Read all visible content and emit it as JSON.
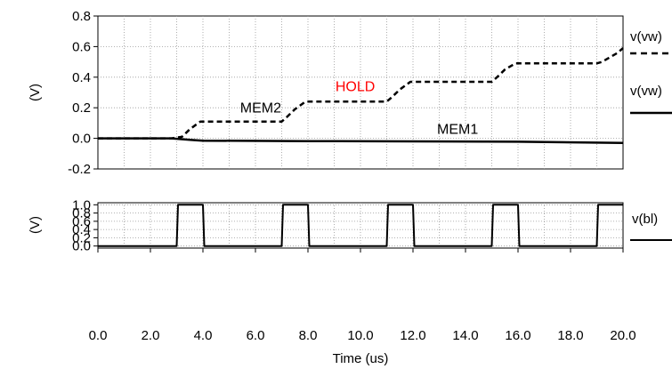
{
  "chart_data": [
    {
      "type": "line",
      "ylabel": "(V)",
      "ylim": [
        -0.2,
        0.8
      ],
      "yticks": [
        -0.2,
        0.0,
        0.2,
        0.4,
        0.6,
        0.8
      ],
      "ytick_labels": [
        "-0.2",
        "0.0",
        "0.2",
        "0.4",
        "0.6",
        "0.8"
      ],
      "xlim": [
        0,
        20
      ],
      "grid": true,
      "series": [
        {
          "name": "v(vw)",
          "style": "dashed",
          "color": "#000000",
          "x": [
            0,
            2.8,
            3.2,
            3.5,
            3.9,
            7.0,
            7.2,
            7.5,
            7.9,
            11.0,
            11.2,
            11.5,
            11.9,
            15.0,
            15.2,
            15.5,
            15.9,
            19.0,
            19.2,
            19.5,
            19.8,
            20.0
          ],
          "y": [
            0.0,
            0.0,
            0.01,
            0.06,
            0.11,
            0.11,
            0.14,
            0.19,
            0.24,
            0.24,
            0.27,
            0.32,
            0.37,
            0.37,
            0.4,
            0.45,
            0.49,
            0.49,
            0.5,
            0.53,
            0.56,
            0.59
          ]
        },
        {
          "name": "v(vw)",
          "style": "solid",
          "color": "#000000",
          "x": [
            0,
            2.8,
            3.5,
            4.0,
            8.0,
            12.0,
            16.0,
            20.0
          ],
          "y": [
            0.0,
            0.0,
            -0.01,
            -0.015,
            -0.018,
            -0.02,
            -0.022,
            -0.03
          ]
        }
      ],
      "annotations": [
        {
          "text": "HOLD",
          "x": 9.8,
          "y": 0.31,
          "color": "#ff0000"
        },
        {
          "text": "MEM2",
          "x": 6.2,
          "y": 0.17,
          "color": "#000000"
        },
        {
          "text": "MEM1",
          "x": 13.7,
          "y": 0.03,
          "color": "#000000"
        }
      ]
    },
    {
      "type": "line",
      "xlabel": "Time (us)",
      "ylabel": "(V)",
      "ylim": [
        -0.05,
        1.05
      ],
      "yticks": [
        0.0,
        0.2,
        0.4,
        0.6,
        0.8,
        1.0
      ],
      "ytick_labels": [
        "0.0",
        "0.2",
        "0.4",
        "0.6",
        "0.8",
        "1.0"
      ],
      "xlim": [
        0,
        20
      ],
      "xticks": [
        0,
        2,
        4,
        6,
        8,
        10,
        12,
        14,
        16,
        18,
        20
      ],
      "xtick_labels": [
        "0.0",
        "2.0",
        "4.0",
        "6.0",
        "8.0",
        "10.0",
        "12.0",
        "14.0",
        "16.0",
        "18.0",
        "20.0"
      ],
      "grid": true,
      "series": [
        {
          "name": "v(bl)",
          "style": "solid",
          "color": "#000000",
          "x": [
            0,
            3.0,
            3.05,
            4.0,
            4.05,
            7.0,
            7.05,
            8.0,
            8.05,
            11.0,
            11.05,
            12.0,
            12.05,
            15.0,
            15.05,
            16.0,
            16.05,
            19.0,
            19.05,
            20.0
          ],
          "y": [
            0,
            0,
            1,
            1,
            0,
            0,
            1,
            1,
            0,
            0,
            1,
            1,
            0,
            0,
            1,
            1,
            0,
            0,
            1,
            1
          ]
        }
      ]
    }
  ]
}
